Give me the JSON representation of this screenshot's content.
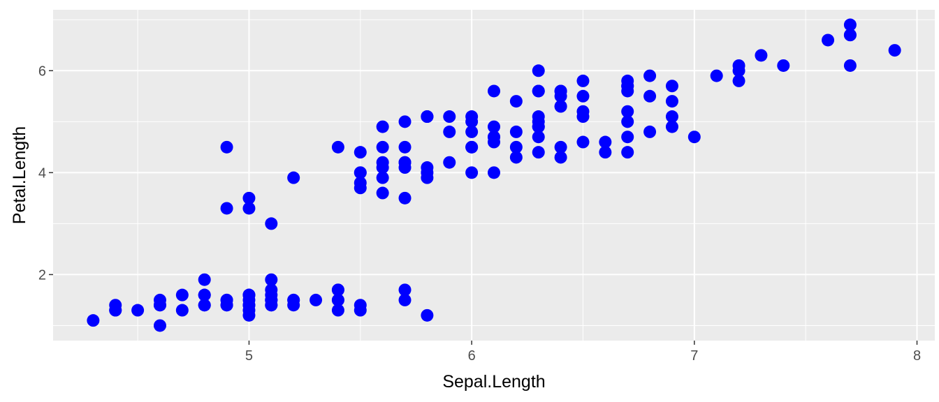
{
  "chart_data": {
    "type": "scatter",
    "title": "",
    "xlabel": "Sepal.Length",
    "ylabel": "Petal.Length",
    "xlim": [
      4.12,
      8.08
    ],
    "ylim": [
      0.705,
      7.195
    ],
    "x_ticks": [
      5,
      6,
      7,
      8
    ],
    "x_minor": [
      4.5,
      5.5,
      6.5,
      7.5
    ],
    "y_ticks": [
      2,
      4,
      6
    ],
    "y_minor": [
      1,
      3,
      5,
      7
    ],
    "x_tick_labels": [
      "5",
      "6",
      "7",
      "8"
    ],
    "y_tick_labels": [
      "2",
      "4",
      "6"
    ],
    "grid": true,
    "point_color": "#0000ff",
    "panel_color": "#ebebeb",
    "grid_color": "#ffffff",
    "points": [
      {
        "x": 5.1,
        "y": 1.4
      },
      {
        "x": 4.9,
        "y": 1.4
      },
      {
        "x": 4.7,
        "y": 1.3
      },
      {
        "x": 4.6,
        "y": 1.5
      },
      {
        "x": 5.0,
        "y": 1.4
      },
      {
        "x": 5.4,
        "y": 1.7
      },
      {
        "x": 4.6,
        "y": 1.4
      },
      {
        "x": 5.0,
        "y": 1.5
      },
      {
        "x": 4.4,
        "y": 1.4
      },
      {
        "x": 4.9,
        "y": 1.5
      },
      {
        "x": 5.4,
        "y": 1.5
      },
      {
        "x": 4.8,
        "y": 1.6
      },
      {
        "x": 4.8,
        "y": 1.4
      },
      {
        "x": 4.3,
        "y": 1.1
      },
      {
        "x": 5.8,
        "y": 1.2
      },
      {
        "x": 5.7,
        "y": 1.5
      },
      {
        "x": 5.4,
        "y": 1.3
      },
      {
        "x": 5.1,
        "y": 1.4
      },
      {
        "x": 5.7,
        "y": 1.7
      },
      {
        "x": 5.1,
        "y": 1.5
      },
      {
        "x": 5.4,
        "y": 1.7
      },
      {
        "x": 5.1,
        "y": 1.5
      },
      {
        "x": 4.6,
        "y": 1.0
      },
      {
        "x": 5.1,
        "y": 1.7
      },
      {
        "x": 4.8,
        "y": 1.9
      },
      {
        "x": 5.0,
        "y": 1.6
      },
      {
        "x": 5.0,
        "y": 1.6
      },
      {
        "x": 5.2,
        "y": 1.5
      },
      {
        "x": 5.2,
        "y": 1.4
      },
      {
        "x": 4.7,
        "y": 1.6
      },
      {
        "x": 4.8,
        "y": 1.6
      },
      {
        "x": 5.4,
        "y": 1.5
      },
      {
        "x": 5.2,
        "y": 1.5
      },
      {
        "x": 5.5,
        "y": 1.4
      },
      {
        "x": 4.9,
        "y": 1.5
      },
      {
        "x": 5.0,
        "y": 1.2
      },
      {
        "x": 5.5,
        "y": 1.3
      },
      {
        "x": 4.9,
        "y": 1.4
      },
      {
        "x": 4.4,
        "y": 1.3
      },
      {
        "x": 5.1,
        "y": 1.5
      },
      {
        "x": 5.0,
        "y": 1.3
      },
      {
        "x": 4.5,
        "y": 1.3
      },
      {
        "x": 4.4,
        "y": 1.3
      },
      {
        "x": 5.0,
        "y": 1.6
      },
      {
        "x": 5.1,
        "y": 1.9
      },
      {
        "x": 4.8,
        "y": 1.4
      },
      {
        "x": 5.1,
        "y": 1.6
      },
      {
        "x": 4.6,
        "y": 1.4
      },
      {
        "x": 5.3,
        "y": 1.5
      },
      {
        "x": 5.0,
        "y": 1.4
      },
      {
        "x": 7.0,
        "y": 4.7
      },
      {
        "x": 6.4,
        "y": 4.5
      },
      {
        "x": 6.9,
        "y": 4.9
      },
      {
        "x": 5.5,
        "y": 4.0
      },
      {
        "x": 6.5,
        "y": 4.6
      },
      {
        "x": 5.7,
        "y": 4.5
      },
      {
        "x": 6.3,
        "y": 4.7
      },
      {
        "x": 4.9,
        "y": 3.3
      },
      {
        "x": 6.6,
        "y": 4.6
      },
      {
        "x": 5.2,
        "y": 3.9
      },
      {
        "x": 5.0,
        "y": 3.5
      },
      {
        "x": 5.9,
        "y": 4.2
      },
      {
        "x": 6.0,
        "y": 4.0
      },
      {
        "x": 6.1,
        "y": 4.7
      },
      {
        "x": 5.6,
        "y": 3.6
      },
      {
        "x": 6.7,
        "y": 4.4
      },
      {
        "x": 5.6,
        "y": 4.5
      },
      {
        "x": 5.8,
        "y": 4.1
      },
      {
        "x": 6.2,
        "y": 4.5
      },
      {
        "x": 5.6,
        "y": 3.9
      },
      {
        "x": 5.9,
        "y": 4.8
      },
      {
        "x": 6.1,
        "y": 4.0
      },
      {
        "x": 6.3,
        "y": 4.9
      },
      {
        "x": 6.1,
        "y": 4.7
      },
      {
        "x": 6.4,
        "y": 4.3
      },
      {
        "x": 6.6,
        "y": 4.4
      },
      {
        "x": 6.8,
        "y": 4.8
      },
      {
        "x": 6.7,
        "y": 5.0
      },
      {
        "x": 6.0,
        "y": 4.5
      },
      {
        "x": 5.7,
        "y": 3.5
      },
      {
        "x": 5.5,
        "y": 3.8
      },
      {
        "x": 5.5,
        "y": 3.7
      },
      {
        "x": 5.8,
        "y": 3.9
      },
      {
        "x": 6.0,
        "y": 5.1
      },
      {
        "x": 5.4,
        "y": 4.5
      },
      {
        "x": 6.0,
        "y": 4.5
      },
      {
        "x": 6.7,
        "y": 4.7
      },
      {
        "x": 6.3,
        "y": 4.4
      },
      {
        "x": 5.6,
        "y": 4.1
      },
      {
        "x": 5.5,
        "y": 4.0
      },
      {
        "x": 5.5,
        "y": 4.4
      },
      {
        "x": 6.1,
        "y": 4.6
      },
      {
        "x": 5.8,
        "y": 4.0
      },
      {
        "x": 5.0,
        "y": 3.3
      },
      {
        "x": 5.6,
        "y": 4.2
      },
      {
        "x": 5.7,
        "y": 4.2
      },
      {
        "x": 5.7,
        "y": 4.2
      },
      {
        "x": 6.2,
        "y": 4.3
      },
      {
        "x": 5.1,
        "y": 3.0
      },
      {
        "x": 5.7,
        "y": 4.1
      },
      {
        "x": 6.3,
        "y": 6.0
      },
      {
        "x": 5.8,
        "y": 5.1
      },
      {
        "x": 7.1,
        "y": 5.9
      },
      {
        "x": 6.3,
        "y": 5.6
      },
      {
        "x": 6.5,
        "y": 5.8
      },
      {
        "x": 7.6,
        "y": 6.6
      },
      {
        "x": 4.9,
        "y": 4.5
      },
      {
        "x": 7.3,
        "y": 6.3
      },
      {
        "x": 6.7,
        "y": 5.8
      },
      {
        "x": 7.2,
        "y": 6.1
      },
      {
        "x": 6.5,
        "y": 5.1
      },
      {
        "x": 6.4,
        "y": 5.3
      },
      {
        "x": 6.8,
        "y": 5.5
      },
      {
        "x": 5.7,
        "y": 5.0
      },
      {
        "x": 5.8,
        "y": 5.1
      },
      {
        "x": 6.4,
        "y": 5.3
      },
      {
        "x": 6.5,
        "y": 5.5
      },
      {
        "x": 7.7,
        "y": 6.7
      },
      {
        "x": 7.7,
        "y": 6.9
      },
      {
        "x": 6.0,
        "y": 5.0
      },
      {
        "x": 6.9,
        "y": 5.7
      },
      {
        "x": 5.6,
        "y": 4.9
      },
      {
        "x": 7.7,
        "y": 6.7
      },
      {
        "x": 6.3,
        "y": 4.9
      },
      {
        "x": 6.7,
        "y": 5.7
      },
      {
        "x": 7.2,
        "y": 6.0
      },
      {
        "x": 6.2,
        "y": 4.8
      },
      {
        "x": 6.1,
        "y": 4.9
      },
      {
        "x": 6.4,
        "y": 5.6
      },
      {
        "x": 7.2,
        "y": 5.8
      },
      {
        "x": 7.4,
        "y": 6.1
      },
      {
        "x": 7.9,
        "y": 6.4
      },
      {
        "x": 6.4,
        "y": 5.6
      },
      {
        "x": 6.3,
        "y": 5.1
      },
      {
        "x": 6.1,
        "y": 5.6
      },
      {
        "x": 7.7,
        "y": 6.1
      },
      {
        "x": 6.3,
        "y": 5.6
      },
      {
        "x": 6.4,
        "y": 5.5
      },
      {
        "x": 6.0,
        "y": 4.8
      },
      {
        "x": 6.9,
        "y": 5.4
      },
      {
        "x": 6.7,
        "y": 5.6
      },
      {
        "x": 6.9,
        "y": 5.1
      },
      {
        "x": 5.8,
        "y": 5.1
      },
      {
        "x": 6.8,
        "y": 5.9
      },
      {
        "x": 6.7,
        "y": 5.7
      },
      {
        "x": 6.7,
        "y": 5.2
      },
      {
        "x": 6.3,
        "y": 5.0
      },
      {
        "x": 6.5,
        "y": 5.2
      },
      {
        "x": 6.2,
        "y": 5.4
      },
      {
        "x": 5.9,
        "y": 5.1
      }
    ]
  }
}
